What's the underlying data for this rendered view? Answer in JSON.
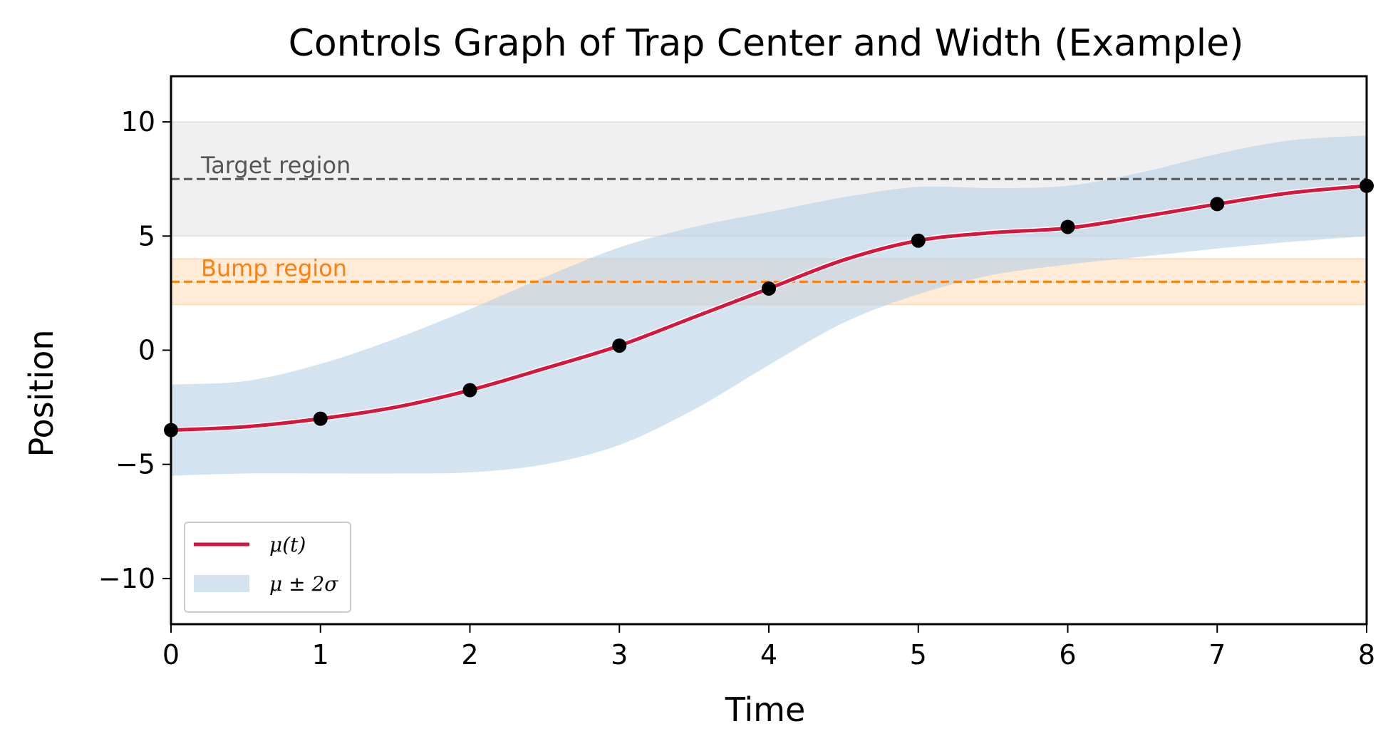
{
  "chart_data": {
    "type": "line",
    "title": "Controls Graph of Trap Center and Width (Example)",
    "xlabel": "Time",
    "ylabel": "Position",
    "xlim": [
      0,
      8
    ],
    "ylim": [
      -12,
      12
    ],
    "xticks": [
      0,
      1,
      2,
      3,
      4,
      5,
      6,
      7,
      8
    ],
    "xtick_labels": [
      "0",
      "1",
      "2",
      "3",
      "4",
      "5",
      "6",
      "7",
      "8"
    ],
    "yticks": [
      -10,
      -5,
      0,
      5,
      10
    ],
    "ytick_labels": [
      "−10",
      "−5",
      "0",
      "5",
      "10"
    ],
    "grid": false,
    "legend_position": "lower-left",
    "regions": [
      {
        "label": "Target region",
        "line_y": 7.5,
        "band": [
          5,
          10
        ],
        "line_color": "#555555",
        "band_color": "#d9d9d9",
        "label_color": "#555555"
      },
      {
        "label": "Bump region",
        "line_y": 3,
        "band": [
          2,
          4
        ],
        "line_color": "#ff7f0e",
        "band_color": "#ffcc99",
        "label_color": "#ff7f0e"
      }
    ],
    "series": [
      {
        "name": "μ(t)",
        "kind": "line",
        "color": "#d6163d",
        "x": [
          0,
          0.5,
          1,
          1.5,
          2,
          2.5,
          3,
          3.5,
          4,
          4.5,
          5,
          5.5,
          6,
          6.5,
          7,
          7.5,
          8
        ],
        "y": [
          -3.5,
          -3.35,
          -3.0,
          -2.5,
          -1.75,
          -0.8,
          0.2,
          1.45,
          2.7,
          3.95,
          4.8,
          5.15,
          5.35,
          5.85,
          6.4,
          6.9,
          7.2
        ]
      },
      {
        "name": "μ ± 2σ",
        "kind": "band",
        "color": "#b8d0e6",
        "x": [
          0,
          0.5,
          1,
          1.5,
          2,
          2.5,
          3,
          3.5,
          4,
          4.5,
          5,
          5.5,
          6,
          6.5,
          7,
          7.5,
          8
        ],
        "upper": [
          -1.5,
          -1.35,
          -0.6,
          0.5,
          1.8,
          3.2,
          4.5,
          5.4,
          6.05,
          6.7,
          7.15,
          7.1,
          7.2,
          7.8,
          8.6,
          9.2,
          9.4
        ],
        "lower": [
          -5.5,
          -5.4,
          -5.4,
          -5.4,
          -5.35,
          -5.0,
          -4.15,
          -2.6,
          -0.65,
          1.2,
          2.45,
          3.3,
          3.75,
          4.1,
          4.45,
          4.75,
          5.0
        ]
      }
    ],
    "markers": {
      "color": "#000000",
      "x": [
        0,
        1,
        2,
        3,
        4,
        5,
        6,
        7,
        8
      ],
      "y": [
        -3.5,
        -3.0,
        -1.75,
        0.2,
        2.7,
        4.8,
        5.4,
        6.4,
        7.2
      ]
    }
  }
}
